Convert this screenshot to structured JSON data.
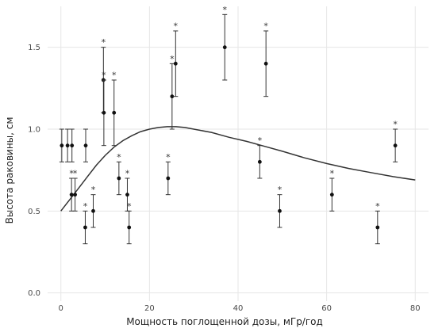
{
  "chart_data": {
    "type": "scatter",
    "xlabel": "Мощность поглощенной дозы, мГр/год",
    "ylabel": "Высота раковины, см",
    "xlim": [
      -3,
      83
    ],
    "ylim": [
      -0.05,
      1.75
    ],
    "x_ticks": [
      0,
      20,
      40,
      60,
      80
    ],
    "x_tick_labels": [
      "0",
      "20",
      "40",
      "60",
      "80"
    ],
    "y_ticks": [
      0.0,
      0.5,
      1.0,
      1.5
    ],
    "y_tick_labels": [
      "0.0",
      "0.5",
      "1.0",
      "1.5"
    ],
    "grid": true,
    "colors": {
      "points": "#111111",
      "grid": "#e6e6e6",
      "curve": "#333333"
    },
    "points": [
      {
        "x": 0.2,
        "y": 0.9,
        "ylo": 0.8,
        "yhi": 1.0,
        "sig": ""
      },
      {
        "x": 1.5,
        "y": 0.9,
        "ylo": 0.8,
        "yhi": 1.0,
        "sig": ""
      },
      {
        "x": 2.5,
        "y": 0.9,
        "ylo": 0.8,
        "yhi": 1.0,
        "sig": ""
      },
      {
        "x": 2.4,
        "y": 0.6,
        "ylo": 0.5,
        "yhi": 0.7,
        "sig": "*"
      },
      {
        "x": 3.2,
        "y": 0.6,
        "ylo": 0.5,
        "yhi": 0.7,
        "sig": "*"
      },
      {
        "x": 5.5,
        "y": 0.4,
        "ylo": 0.3,
        "yhi": 0.5,
        "sig": "*"
      },
      {
        "x": 5.6,
        "y": 0.9,
        "ylo": 0.8,
        "yhi": 1.0,
        "sig": ""
      },
      {
        "x": 7.3,
        "y": 0.5,
        "ylo": 0.4,
        "yhi": 0.6,
        "sig": "*"
      },
      {
        "x": 9.6,
        "y": 1.3,
        "ylo": 1.1,
        "yhi": 1.5,
        "sig": "*"
      },
      {
        "x": 9.7,
        "y": 1.1,
        "ylo": 0.9,
        "yhi": 1.3,
        "sig": "*"
      },
      {
        "x": 12.0,
        "y": 1.1,
        "ylo": 0.9,
        "yhi": 1.3,
        "sig": "*"
      },
      {
        "x": 13.1,
        "y": 0.7,
        "ylo": 0.6,
        "yhi": 0.8,
        "sig": "*"
      },
      {
        "x": 15.0,
        "y": 0.6,
        "ylo": 0.5,
        "yhi": 0.7,
        "sig": "*"
      },
      {
        "x": 15.4,
        "y": 0.4,
        "ylo": 0.3,
        "yhi": 0.5,
        "sig": "*"
      },
      {
        "x": 24.2,
        "y": 0.7,
        "ylo": 0.6,
        "yhi": 0.8,
        "sig": "*"
      },
      {
        "x": 25.1,
        "y": 1.2,
        "ylo": 1.0,
        "yhi": 1.4,
        "sig": "*"
      },
      {
        "x": 25.9,
        "y": 1.4,
        "ylo": 1.2,
        "yhi": 1.6,
        "sig": "*"
      },
      {
        "x": 37.0,
        "y": 1.5,
        "ylo": 1.3,
        "yhi": 1.7,
        "sig": "*"
      },
      {
        "x": 44.9,
        "y": 0.8,
        "ylo": 0.7,
        "yhi": 0.9,
        "sig": "*"
      },
      {
        "x": 46.3,
        "y": 1.4,
        "ylo": 1.2,
        "yhi": 1.6,
        "sig": "*"
      },
      {
        "x": 49.4,
        "y": 0.5,
        "ylo": 0.4,
        "yhi": 0.6,
        "sig": "*"
      },
      {
        "x": 61.2,
        "y": 0.6,
        "ylo": 0.5,
        "yhi": 0.7,
        "sig": "*"
      },
      {
        "x": 71.5,
        "y": 0.4,
        "ylo": 0.3,
        "yhi": 0.5,
        "sig": "*"
      },
      {
        "x": 75.5,
        "y": 0.9,
        "ylo": 0.8,
        "yhi": 1.0,
        "sig": "*"
      }
    ],
    "fit_curve": {
      "x": [
        0,
        2,
        4,
        6,
        8,
        10,
        12,
        14,
        16,
        18,
        20,
        22,
        24,
        26,
        28,
        30,
        34,
        38,
        42,
        46,
        50,
        55,
        60,
        65,
        70,
        75,
        80
      ],
      "y": [
        0.5,
        0.57,
        0.64,
        0.71,
        0.78,
        0.84,
        0.89,
        0.93,
        0.96,
        0.985,
        1.0,
        1.01,
        1.015,
        1.015,
        1.01,
        1.0,
        0.98,
        0.95,
        0.925,
        0.895,
        0.865,
        0.825,
        0.79,
        0.76,
        0.735,
        0.71,
        0.69
      ]
    }
  }
}
